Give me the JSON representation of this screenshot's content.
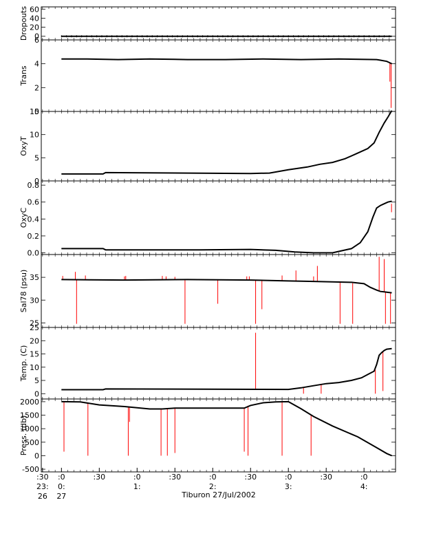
{
  "footer_label": "Tiburon 27/Jul/2002",
  "colors": {
    "trace": "#000000",
    "spike": "#ff0000",
    "axis": "#000000"
  },
  "chart_data": [
    {
      "type": "line",
      "ylabel": "Dropouts",
      "ylim": [
        -8,
        65
      ],
      "yticks": [
        "0",
        "20",
        "40",
        "60"
      ],
      "ytick_values": [
        0,
        20,
        40,
        60
      ],
      "series": [
        {
          "x": [
            0,
            262
          ],
          "values": [
            0,
            0
          ]
        }
      ],
      "spikes": []
    },
    {
      "type": "line",
      "ylabel": "Trans",
      "ylim": [
        0,
        6
      ],
      "yticks": [
        "0",
        "2",
        "4",
        "6"
      ],
      "ytick_values": [
        0,
        2,
        4,
        6
      ],
      "series": [
        {
          "x": [
            0,
            20,
            45,
            70,
            100,
            130,
            160,
            190,
            220,
            250,
            253,
            258,
            260,
            262
          ],
          "values": [
            4.4,
            4.4,
            4.35,
            4.4,
            4.35,
            4.35,
            4.4,
            4.35,
            4.4,
            4.35,
            4.3,
            4.2,
            4.1,
            4.0
          ]
        }
      ],
      "spikes": [
        {
          "x": 261.5,
          "from": 4.0,
          "to": 0.3
        },
        {
          "x": 260.5,
          "from": 4.1,
          "to": 2.5
        }
      ]
    },
    {
      "type": "line",
      "ylabel": "OxyT",
      "ylim": [
        0,
        15
      ],
      "yticks": [
        "0",
        "5",
        "10",
        "15"
      ],
      "ytick_values": [
        0,
        5,
        10,
        15
      ],
      "series": [
        {
          "x": [
            0,
            33,
            35,
            150,
            165,
            180,
            195,
            205,
            215,
            225,
            235,
            243,
            248,
            252,
            256,
            259,
            262
          ],
          "values": [
            1.5,
            1.5,
            1.8,
            1.6,
            1.7,
            2.4,
            3.0,
            3.6,
            4.0,
            4.8,
            6.0,
            7.0,
            8.2,
            10.5,
            12.5,
            13.8,
            15.2
          ]
        }
      ],
      "spikes": []
    },
    {
      "type": "line",
      "ylabel": "OxyC",
      "ylim": [
        -0.02,
        0.85
      ],
      "yticks": [
        "0.0",
        "0.2",
        "0.4",
        "0.6",
        "0.8"
      ],
      "ytick_values": [
        0.0,
        0.2,
        0.4,
        0.6,
        0.8
      ],
      "series": [
        {
          "x": [
            0,
            33,
            35,
            110,
            150,
            170,
            185,
            200,
            215,
            230,
            237,
            243,
            247,
            250,
            253,
            256,
            259,
            262
          ],
          "values": [
            0.05,
            0.05,
            0.035,
            0.035,
            0.04,
            0.03,
            0.01,
            0.0,
            0.0,
            0.05,
            0.12,
            0.25,
            0.42,
            0.53,
            0.56,
            0.58,
            0.6,
            0.61
          ]
        }
      ],
      "spikes": [
        {
          "x": 261.8,
          "from": 0.58,
          "to": 0.48
        }
      ]
    },
    {
      "type": "line",
      "ylabel": "Sal78 (psu)",
      "ylim": [
        24,
        40
      ],
      "yticks": [
        "25",
        "30",
        "35"
      ],
      "ytick_values": [
        25,
        30,
        35
      ],
      "series": [
        {
          "x": [
            0,
            50,
            100,
            150,
            180,
            200,
            230,
            240,
            245,
            250,
            253,
            256,
            259,
            262
          ],
          "values": [
            34.5,
            34.4,
            34.5,
            34.4,
            34.2,
            34.1,
            33.9,
            33.6,
            32.8,
            32.2,
            31.9,
            31.8,
            31.7,
            31.6
          ]
        }
      ],
      "spikes": [
        {
          "x": 1,
          "from": 34.5,
          "to": 35.3
        },
        {
          "x": 11,
          "from": 34.5,
          "to": 36.2
        },
        {
          "x": 12,
          "from": 34.5,
          "to": 24.8
        },
        {
          "x": 19,
          "from": 34.5,
          "to": 35.4
        },
        {
          "x": 50,
          "from": 34.4,
          "to": 35.2
        },
        {
          "x": 51,
          "from": 34.4,
          "to": 35.3
        },
        {
          "x": 80,
          "from": 34.4,
          "to": 35.3
        },
        {
          "x": 83,
          "from": 34.4,
          "to": 35.2
        },
        {
          "x": 90,
          "from": 34.4,
          "to": 35.1
        },
        {
          "x": 98,
          "from": 34.4,
          "to": 24.8
        },
        {
          "x": 124,
          "from": 34.4,
          "to": 29.2
        },
        {
          "x": 147,
          "from": 34.4,
          "to": 35.2
        },
        {
          "x": 149,
          "from": 34.4,
          "to": 35.2
        },
        {
          "x": 154,
          "from": 34.4,
          "to": 24.8
        },
        {
          "x": 159,
          "from": 34.4,
          "to": 28.0
        },
        {
          "x": 175,
          "from": 34.3,
          "to": 35.4
        },
        {
          "x": 186,
          "from": 34.2,
          "to": 36.5
        },
        {
          "x": 200,
          "from": 34.0,
          "to": 35.2
        },
        {
          "x": 203,
          "from": 34.0,
          "to": 37.5
        },
        {
          "x": 221,
          "from": 33.8,
          "to": 24.8
        },
        {
          "x": 231,
          "from": 33.7,
          "to": 24.8
        },
        {
          "x": 252,
          "from": 32.0,
          "to": 39.5
        },
        {
          "x": 256,
          "from": 31.8,
          "to": 39.0
        },
        {
          "x": 257,
          "from": 31.8,
          "to": 24.8
        },
        {
          "x": 261,
          "from": 31.6,
          "to": 24.8
        }
      ]
    },
    {
      "type": "line",
      "ylabel": "Temp. (C)",
      "ylim": [
        -2,
        25
      ],
      "yticks": [
        "0",
        "5",
        "10",
        "15",
        "20",
        "25"
      ],
      "ytick_values": [
        0,
        5,
        10,
        15,
        20,
        25
      ],
      "series": [
        {
          "x": [
            0,
            33,
            35,
            180,
            190,
            200,
            210,
            220,
            230,
            238,
            244,
            248,
            250,
            252,
            254,
            256,
            258,
            262
          ],
          "values": [
            1.5,
            1.5,
            1.8,
            1.6,
            2.2,
            3.0,
            3.8,
            4.2,
            5.0,
            6.0,
            7.5,
            8.5,
            11.0,
            14.5,
            15.5,
            16.3,
            16.8,
            17.0
          ]
        }
      ],
      "spikes": [
        {
          "x": 154,
          "from": 1.6,
          "to": 23.0
        },
        {
          "x": 192,
          "from": 2.3,
          "to": 0.0
        },
        {
          "x": 206,
          "from": 3.5,
          "to": 0.0
        },
        {
          "x": 249,
          "from": 9.0,
          "to": 0.0
        },
        {
          "x": 255,
          "from": 15.8,
          "to": 1.0
        }
      ]
    },
    {
      "type": "line",
      "ylabel": "Press. (db)",
      "ylim": [
        -600,
        2100
      ],
      "yticks": [
        "-500",
        "0",
        "500",
        "1000",
        "1500",
        "2000"
      ],
      "ytick_values": [
        -500,
        0,
        500,
        1000,
        1500,
        2000
      ],
      "series": [
        {
          "x": [
            0,
            15,
            30,
            50,
            70,
            80,
            90,
            100,
            145,
            150,
            160,
            170,
            180,
            190,
            200,
            215,
            235,
            250,
            258,
            262
          ],
          "values": [
            2000,
            1990,
            1880,
            1820,
            1730,
            1730,
            1760,
            1760,
            1760,
            1860,
            1960,
            1990,
            2000,
            1740,
            1450,
            1100,
            700,
            300,
            80,
            0
          ]
        }
      ],
      "spikes": [
        {
          "x": 2,
          "from": 2000,
          "to": 150
        },
        {
          "x": 21,
          "from": 1950,
          "to": 0
        },
        {
          "x": 53,
          "from": 1810,
          "to": 0
        },
        {
          "x": 54,
          "from": 1810,
          "to": 1250
        },
        {
          "x": 79,
          "from": 1730,
          "to": 0
        },
        {
          "x": 84,
          "from": 1740,
          "to": 0
        },
        {
          "x": 90,
          "from": 1760,
          "to": 100
        },
        {
          "x": 145,
          "from": 1760,
          "to": 150
        },
        {
          "x": 148,
          "from": 1850,
          "to": 0
        },
        {
          "x": 175,
          "from": 1990,
          "to": 0
        },
        {
          "x": 198,
          "from": 1500,
          "to": 0
        }
      ]
    }
  ],
  "x_axis": {
    "xlim": [
      -16,
      265
    ],
    "ticks": [
      {
        "x": -15,
        "lines": [
          ":30",
          "23:",
          "26"
        ]
      },
      {
        "x": 0,
        "lines": [
          ":0",
          "0:",
          "27"
        ]
      },
      {
        "x": 30,
        "lines": [
          ":30",
          "",
          ""
        ]
      },
      {
        "x": 60,
        "lines": [
          ":0",
          "1:",
          ""
        ]
      },
      {
        "x": 90,
        "lines": [
          ":30",
          "",
          ""
        ]
      },
      {
        "x": 120,
        "lines": [
          ":0",
          "2:",
          ""
        ]
      },
      {
        "x": 150,
        "lines": [
          ":30",
          "",
          ""
        ]
      },
      {
        "x": 180,
        "lines": [
          ":0",
          "3:",
          ""
        ]
      },
      {
        "x": 210,
        "lines": [
          ":30",
          "",
          ""
        ]
      },
      {
        "x": 240,
        "lines": [
          ":0",
          "4:",
          ""
        ]
      }
    ]
  }
}
